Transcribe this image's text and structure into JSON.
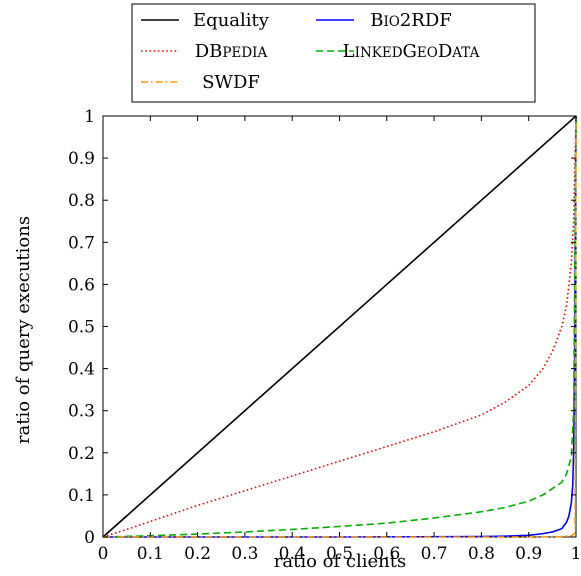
{
  "chart_data": {
    "type": "line",
    "title": "",
    "xlabel": "ratio of clients",
    "ylabel": "ratio of query executions",
    "xlim": [
      0,
      1
    ],
    "ylim": [
      0,
      1
    ],
    "x_ticks": [
      "0",
      "0.1",
      "0.2",
      "0.3",
      "0.4",
      "0.5",
      "0.6",
      "0.7",
      "0.8",
      "0.9",
      "1"
    ],
    "y_ticks": [
      "0",
      "0.1",
      "0.2",
      "0.3",
      "0.4",
      "0.5",
      "0.6",
      "0.7",
      "0.8",
      "0.9",
      "1"
    ],
    "grid": false,
    "legend_position": "top-center-outside",
    "series": [
      {
        "name": "Equality",
        "color": "#000000",
        "dash": "solid",
        "x": [
          0,
          1
        ],
        "y": [
          0,
          1
        ]
      },
      {
        "name": "Bio2RDF",
        "small_caps": true,
        "color": "#0000ff",
        "dash": "solid",
        "x": [
          0,
          0.5,
          0.8,
          0.85,
          0.9,
          0.93,
          0.95,
          0.97,
          0.98,
          0.985,
          0.99,
          0.993,
          0.995,
          0.997,
          1
        ],
        "y": [
          0,
          0,
          0.001,
          0.002,
          0.004,
          0.008,
          0.012,
          0.02,
          0.035,
          0.05,
          0.08,
          0.12,
          0.2,
          0.4,
          1
        ]
      },
      {
        "name": "DBpedia",
        "small_caps": true,
        "color": "#ff0000",
        "dash": "dotted",
        "x": [
          0,
          0.05,
          0.1,
          0.2,
          0.3,
          0.4,
          0.5,
          0.6,
          0.7,
          0.8,
          0.85,
          0.9,
          0.93,
          0.95,
          0.97,
          0.98,
          0.99,
          0.995,
          1
        ],
        "y": [
          0,
          0.018,
          0.037,
          0.075,
          0.11,
          0.145,
          0.18,
          0.215,
          0.25,
          0.29,
          0.32,
          0.36,
          0.4,
          0.44,
          0.5,
          0.55,
          0.65,
          0.75,
          1
        ]
      },
      {
        "name": "LinkedGeoData",
        "small_caps": true,
        "color": "#00b000",
        "dash": "dashed",
        "x": [
          0,
          0.1,
          0.2,
          0.3,
          0.4,
          0.5,
          0.6,
          0.7,
          0.8,
          0.85,
          0.9,
          0.93,
          0.95,
          0.97,
          0.98,
          0.99,
          0.995,
          1
        ],
        "y": [
          0,
          0.003,
          0.007,
          0.012,
          0.018,
          0.025,
          0.033,
          0.045,
          0.06,
          0.07,
          0.085,
          0.1,
          0.115,
          0.13,
          0.15,
          0.19,
          0.3,
          1
        ]
      },
      {
        "name": "SWDF",
        "small_caps": false,
        "color": "#ff9900",
        "dash": "dashdot",
        "x": [
          0,
          0.5,
          0.9,
          0.97,
          0.99,
          0.995,
          0.998,
          1
        ],
        "y": [
          0,
          0,
          0,
          0.001,
          0.003,
          0.006,
          0.01,
          1
        ]
      }
    ]
  }
}
